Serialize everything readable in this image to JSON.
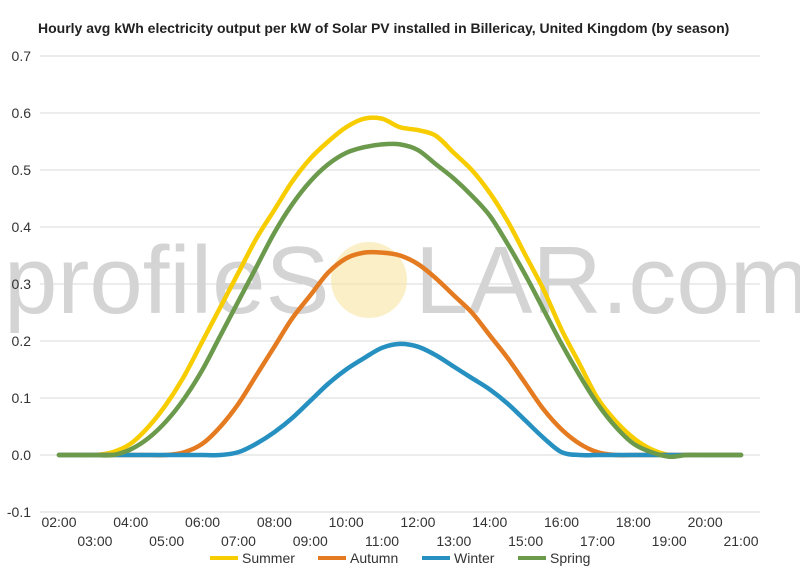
{
  "colors": {
    "summer": "#f7cd00",
    "autumn": "#e57b21",
    "winter": "#2690c1",
    "spring": "#6c9a4c",
    "grid": "#d9d9d9",
    "watermark": "#d4d4d4",
    "sun": "#f7e7a8"
  },
  "watermark": {
    "left": "profileS",
    "right": "LAR.com"
  },
  "chart_data": {
    "type": "line",
    "title": "Hourly avg kWh electricity output per kW of Solar PV installed in Billericay, United Kingdom (by season)",
    "xlabel": "",
    "ylabel": "",
    "ylim": [
      -0.1,
      0.7
    ],
    "yticks": [
      "0.7",
      "0.6",
      "0.5",
      "0.4",
      "0.3",
      "0.2",
      "0.1",
      "0.0",
      "-0.1"
    ],
    "xticks_top": [
      "02:00",
      "04:00",
      "06:00",
      "08:00",
      "10:00",
      "12:00",
      "14:00",
      "16:00",
      "18:00",
      "20:00"
    ],
    "xticks_bottom": [
      "03:00",
      "05:00",
      "07:00",
      "09:00",
      "11:00",
      "13:00",
      "15:00",
      "17:00",
      "19:00",
      "21:00"
    ],
    "grid": true,
    "legend_position": "bottom",
    "x": [
      2,
      2.5,
      3,
      3.5,
      4,
      4.5,
      5,
      5.5,
      6,
      6.5,
      7,
      7.5,
      8,
      8.5,
      9,
      9.5,
      10,
      10.5,
      11,
      11.5,
      12,
      12.5,
      13,
      13.5,
      14,
      14.5,
      15,
      15.5,
      16,
      16.5,
      17,
      17.5,
      18,
      18.5,
      19,
      19.5,
      20,
      20.5,
      21
    ],
    "series": [
      {
        "name": "Summer",
        "values": [
          0,
          0,
          0,
          0.005,
          0.02,
          0.05,
          0.09,
          0.14,
          0.2,
          0.26,
          0.32,
          0.38,
          0.43,
          0.48,
          0.52,
          0.55,
          0.575,
          0.59,
          0.59,
          0.575,
          0.57,
          0.56,
          0.53,
          0.5,
          0.46,
          0.41,
          0.35,
          0.29,
          0.22,
          0.16,
          0.1,
          0.06,
          0.03,
          0.01,
          0,
          0,
          0,
          0,
          0
        ]
      },
      {
        "name": "Autumn",
        "values": [
          0,
          0,
          0,
          0,
          0,
          0,
          0,
          0.005,
          0.02,
          0.05,
          0.09,
          0.14,
          0.19,
          0.24,
          0.28,
          0.32,
          0.345,
          0.355,
          0.355,
          0.35,
          0.335,
          0.31,
          0.28,
          0.25,
          0.21,
          0.17,
          0.125,
          0.08,
          0.045,
          0.02,
          0.005,
          0,
          0,
          0,
          0,
          0,
          0,
          0,
          0
        ]
      },
      {
        "name": "Winter",
        "values": [
          0,
          0,
          0,
          0,
          0,
          0,
          0,
          0,
          0,
          0,
          0.005,
          0.02,
          0.04,
          0.065,
          0.095,
          0.125,
          0.15,
          0.17,
          0.188,
          0.195,
          0.19,
          0.175,
          0.155,
          0.135,
          0.115,
          0.09,
          0.06,
          0.03,
          0.005,
          0,
          0,
          0,
          0,
          0,
          0,
          0,
          0,
          0,
          0
        ]
      },
      {
        "name": "Spring",
        "values": [
          0,
          0,
          0,
          0,
          0.01,
          0.03,
          0.06,
          0.1,
          0.15,
          0.21,
          0.27,
          0.33,
          0.39,
          0.44,
          0.48,
          0.51,
          0.53,
          0.54,
          0.545,
          0.545,
          0.535,
          0.51,
          0.485,
          0.455,
          0.42,
          0.37,
          0.315,
          0.255,
          0.195,
          0.14,
          0.09,
          0.05,
          0.02,
          0.005,
          -0.003,
          0,
          0,
          0,
          0
        ]
      }
    ]
  }
}
